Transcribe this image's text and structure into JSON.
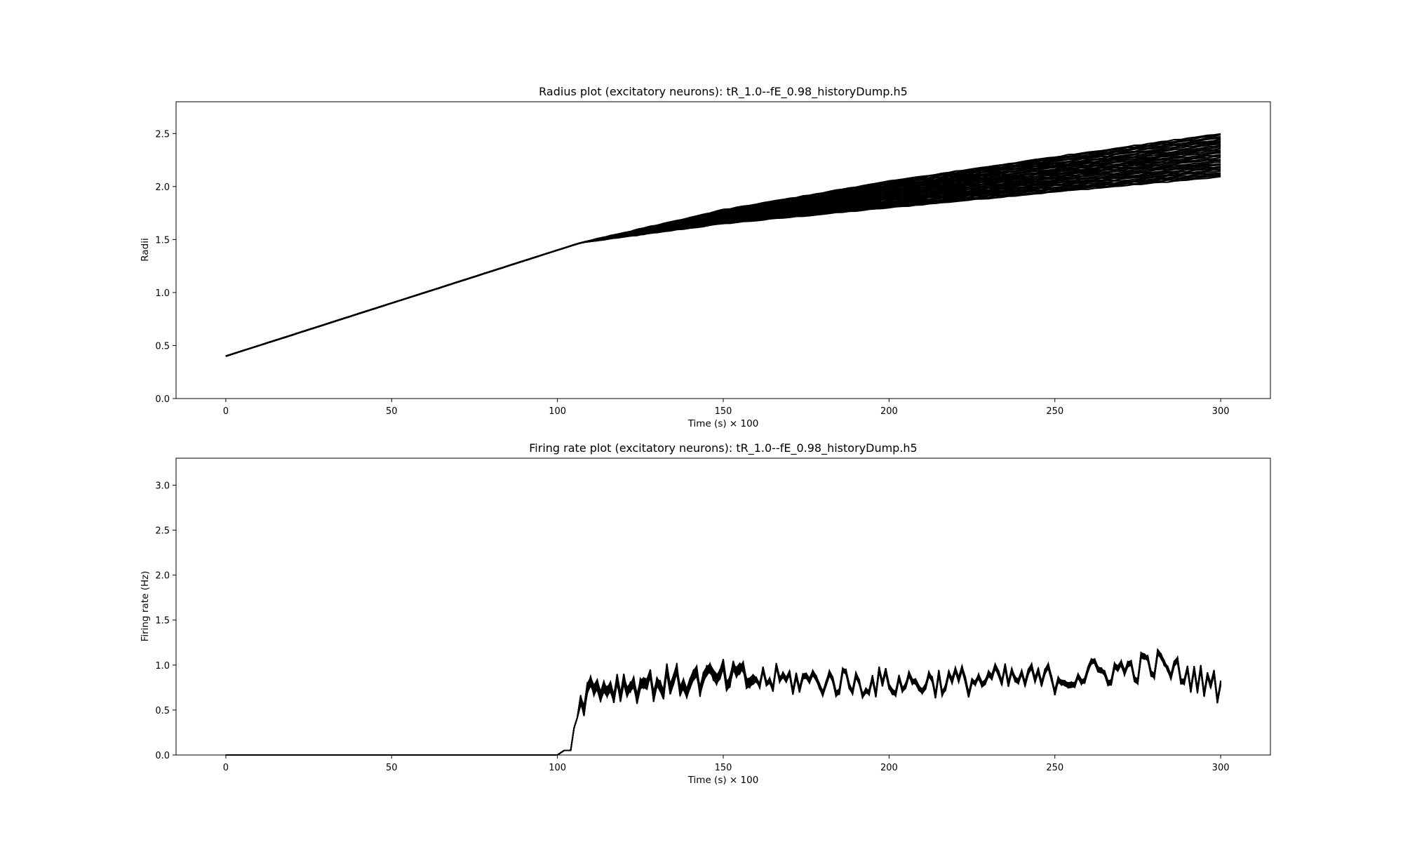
{
  "chart_data": [
    {
      "type": "line",
      "title": "Radius plot (excitatory neurons): tR_1.0--fE_0.98_historyDump.h5",
      "xlabel": "Time (s) × 100",
      "ylabel": "Radii",
      "xlim": [
        -15,
        315
      ],
      "ylim": [
        0,
        2.8
      ],
      "xticks": [
        0,
        50,
        100,
        150,
        200,
        250,
        300
      ],
      "yticks": [
        0.0,
        0.5,
        1.0,
        1.5,
        2.0,
        2.5
      ],
      "xtick_labels": [
        "0",
        "50",
        "100",
        "150",
        "200",
        "250",
        "300"
      ],
      "ytick_labels": [
        "0.0",
        "0.5",
        "1.0",
        "1.5",
        "2.0",
        "2.5"
      ],
      "grid": false,
      "line_color": "#000000",
      "series_count": 30,
      "series_summary": {
        "x": [
          0,
          50,
          100,
          107,
          150,
          200,
          250,
          300
        ],
        "y_low": [
          0.4,
          0.9,
          1.4,
          1.47,
          1.65,
          1.8,
          1.95,
          2.09
        ],
        "y_high": [
          0.4,
          0.9,
          1.4,
          1.47,
          1.78,
          2.05,
          2.28,
          2.5
        ]
      }
    },
    {
      "type": "line",
      "title": "Firing rate plot (excitatory neurons): tR_1.0--fE_0.98_historyDump.h5",
      "xlabel": "Time (s) × 100",
      "ylabel": "Firing rate (Hz)",
      "xlim": [
        -15,
        315
      ],
      "ylim": [
        0,
        3.3
      ],
      "xticks": [
        0,
        50,
        100,
        150,
        200,
        250,
        300
      ],
      "yticks": [
        0.0,
        0.5,
        1.0,
        1.5,
        2.0,
        2.5,
        3.0
      ],
      "xtick_labels": [
        "0",
        "50",
        "100",
        "150",
        "200",
        "250",
        "300"
      ],
      "ytick_labels": [
        "0.0",
        "0.5",
        "1.0",
        "1.5",
        "2.0",
        "2.5",
        "3.0"
      ],
      "grid": false,
      "line_color": "#000000",
      "series_count": 30,
      "series_summary": {
        "x": [
          0,
          100,
          102,
          104,
          105,
          108,
          110,
          150,
          200,
          250,
          281,
          300
        ],
        "y_mean": [
          0.0,
          0.0,
          0.05,
          0.05,
          0.3,
          0.65,
          0.75,
          0.85,
          0.8,
          0.85,
          1.0,
          0.75
        ]
      }
    }
  ]
}
